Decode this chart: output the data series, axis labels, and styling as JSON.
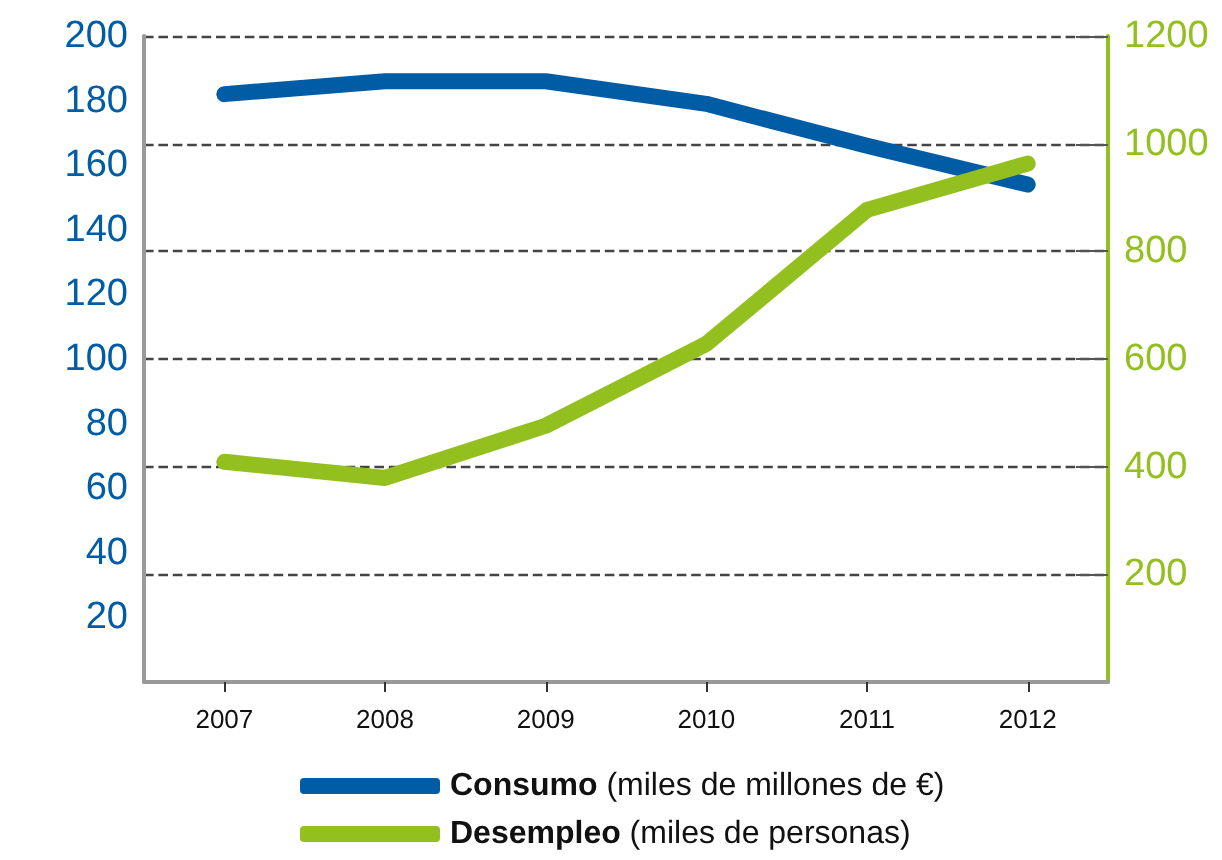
{
  "chart_data": {
    "type": "line",
    "categories": [
      "2007",
      "2008",
      "2009",
      "2010",
      "2011",
      "2012"
    ],
    "series": [
      {
        "name": "Consumo (miles de millones de €)",
        "color": "#005ca5",
        "values": [
          182,
          186,
          186,
          179,
          166,
          154
        ]
      },
      {
        "name": "Desempleo (miles de personas)",
        "color": "#93c01f",
        "axis": "y2",
        "values": [
          409,
          379,
          476,
          628,
          877,
          963
        ]
      }
    ],
    "ylim": [
      0,
      200
    ],
    "yticks": [
      20,
      40,
      60,
      80,
      100,
      120,
      140,
      160,
      180,
      200
    ],
    "y2lim": [
      0,
      1200
    ],
    "y2ticks": [
      200,
      400,
      600,
      800,
      1000,
      1200
    ],
    "grid": "y2",
    "legend": "bottom",
    "line_style": "solid"
  }
}
